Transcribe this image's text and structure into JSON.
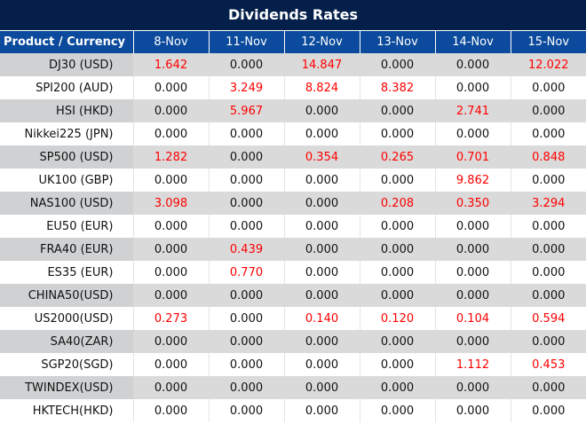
{
  "title": "Dividends Rates",
  "columns": [
    "Product / Currency",
    "8-Nov",
    "11-Nov",
    "12-Nov",
    "13-Nov",
    "14-Nov",
    "15-Nov"
  ],
  "colors": {
    "title_bg": "#04204a",
    "header_bg": "#0b4a9c",
    "nonzero_value": "#ff0000",
    "alt_row": "#dadada"
  },
  "rows": [
    {
      "product": "DJ30 (USD)",
      "values": [
        "1.642",
        "0.000",
        "14.847",
        "0.000",
        "0.000",
        "12.022"
      ]
    },
    {
      "product": "SPI200 (AUD)",
      "values": [
        "0.000",
        "3.249",
        "8.824",
        "8.382",
        "0.000",
        "0.000"
      ]
    },
    {
      "product": "HSI (HKD)",
      "values": [
        "0.000",
        "5.967",
        "0.000",
        "0.000",
        "2.741",
        "0.000"
      ]
    },
    {
      "product": "Nikkei225 (JPN)",
      "values": [
        "0.000",
        "0.000",
        "0.000",
        "0.000",
        "0.000",
        "0.000"
      ]
    },
    {
      "product": "SP500 (USD)",
      "values": [
        "1.282",
        "0.000",
        "0.354",
        "0.265",
        "0.701",
        "0.848"
      ]
    },
    {
      "product": "UK100 (GBP)",
      "values": [
        "0.000",
        "0.000",
        "0.000",
        "0.000",
        "9.862",
        "0.000"
      ]
    },
    {
      "product": "NAS100 (USD)",
      "values": [
        "3.098",
        "0.000",
        "0.000",
        "0.208",
        "0.350",
        "3.294"
      ]
    },
    {
      "product": "EU50 (EUR)",
      "values": [
        "0.000",
        "0.000",
        "0.000",
        "0.000",
        "0.000",
        "0.000"
      ]
    },
    {
      "product": "FRA40 (EUR)",
      "values": [
        "0.000",
        "0.439",
        "0.000",
        "0.000",
        "0.000",
        "0.000"
      ]
    },
    {
      "product": "ES35 (EUR)",
      "values": [
        "0.000",
        "0.770",
        "0.000",
        "0.000",
        "0.000",
        "0.000"
      ]
    },
    {
      "product": "CHINA50(USD)",
      "values": [
        "0.000",
        "0.000",
        "0.000",
        "0.000",
        "0.000",
        "0.000"
      ]
    },
    {
      "product": "US2000(USD)",
      "values": [
        "0.273",
        "0.000",
        "0.140",
        "0.120",
        "0.104",
        "0.594"
      ]
    },
    {
      "product": "SA40(ZAR)",
      "values": [
        "0.000",
        "0.000",
        "0.000",
        "0.000",
        "0.000",
        "0.000"
      ]
    },
    {
      "product": "SGP20(SGD)",
      "values": [
        "0.000",
        "0.000",
        "0.000",
        "0.000",
        "1.112",
        "0.453"
      ]
    },
    {
      "product": "TWINDEX(USD)",
      "values": [
        "0.000",
        "0.000",
        "0.000",
        "0.000",
        "0.000",
        "0.000"
      ]
    },
    {
      "product": "HKTECH(HKD)",
      "values": [
        "0.000",
        "0.000",
        "0.000",
        "0.000",
        "0.000",
        "0.000"
      ]
    }
  ]
}
